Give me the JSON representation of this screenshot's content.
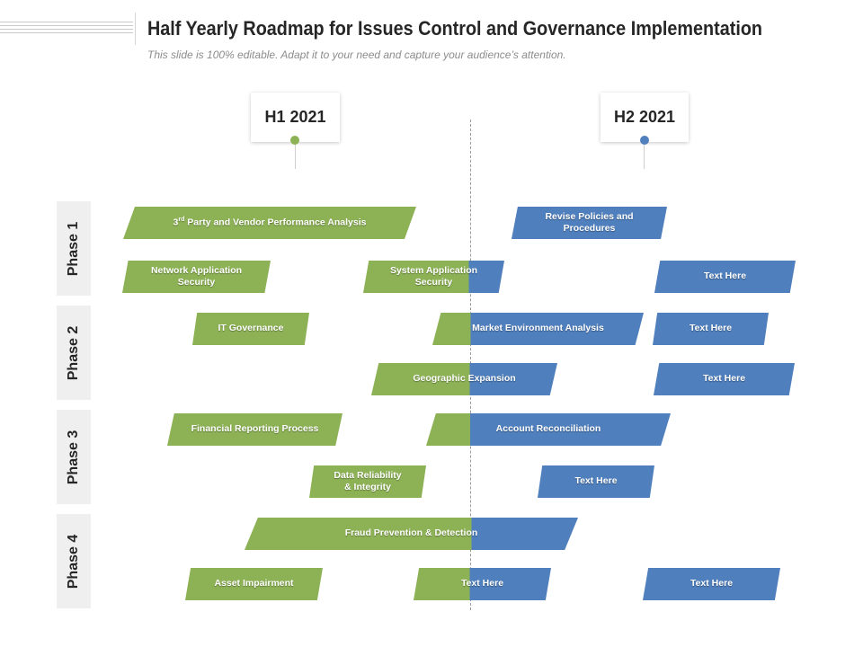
{
  "title": "Half Yearly Roadmap for Issues Control and Governance Implementation",
  "subtitle": "This slide is 100% editable. Adapt it to your need and capture your audience’s attention.",
  "periods": {
    "h1": "H1 2021",
    "h2": "H2 2021"
  },
  "colors": {
    "h1": "#8db255",
    "h2": "#4f7fbd"
  },
  "phases": [
    "Phase 1",
    "Phase 2",
    "Phase 3",
    "Phase 4"
  ],
  "bars": {
    "p1_vendor_prefix": "3",
    "p1_vendor_sup": "rd",
    "p1_vendor_rest": " Party and Vendor Performance Analysis",
    "p1_revise_l1": "Revise Policies and",
    "p1_revise_l2": "Procedures",
    "p1_netsec_l1": "Network Application",
    "p1_netsec_l2": "Security",
    "p1_syssec_l1": "System Application",
    "p1_syssec_l2": "Security",
    "p1_text": "Text Here",
    "p2_itgov": "IT Governance",
    "p2_market": "Market Environment Analysis",
    "p2_text1": "Text Here",
    "p2_geo": "Geographic Expansion",
    "p2_text2": "Text Here",
    "p3_financial": "Financial Reporting Process",
    "p3_account": "Account Reconciliation",
    "p3_data_l1": "Data Reliability",
    "p3_data_l2": "& Integrity",
    "p3_text": "Text Here",
    "p4_fraud": "Fraud Prevention & Detection",
    "p4_asset": "Asset Impairment",
    "p4_text1": "Text Here",
    "p4_text2": "Text Here"
  }
}
